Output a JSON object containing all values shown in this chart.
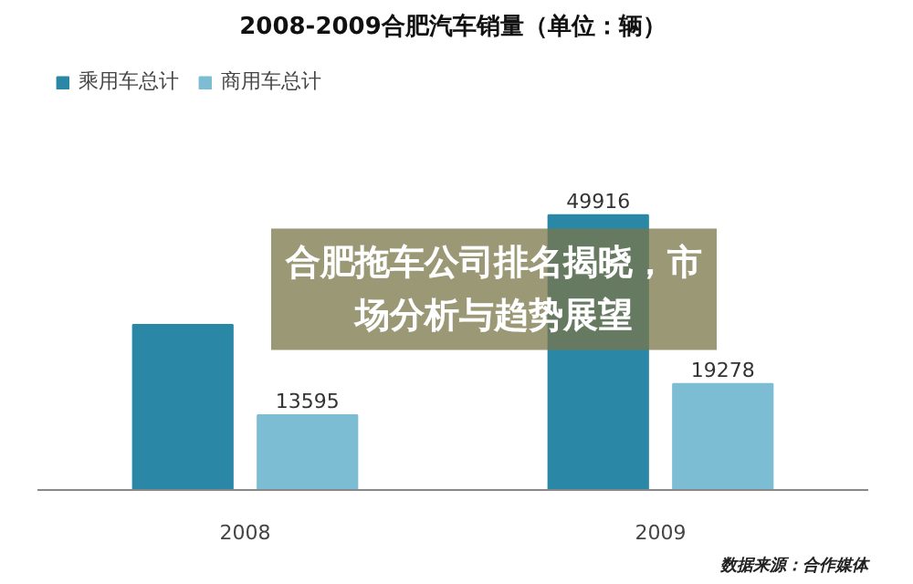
{
  "chart_data": {
    "type": "bar",
    "title": "2008-2009合肥汽车销量（单位：辆）",
    "categories": [
      "2008",
      "2009"
    ],
    "series": [
      {
        "name": "乘用车总计",
        "color": "#2a88a6",
        "values": [
          30000,
          49916
        ],
        "value_labels": [
          null,
          "49916"
        ]
      },
      {
        "name": "商用车总计",
        "color": "#7dbdd4",
        "values": [
          13595,
          19278
        ],
        "value_labels": [
          "13595",
          "19278"
        ]
      }
    ],
    "tick_labels": "x",
    "legend": "top left",
    "grid": false,
    "annotations": [
      "合肥拖车公司排名揭晓，市场分析与趋势展望",
      "数据来源：合作媒体"
    ]
  }
}
